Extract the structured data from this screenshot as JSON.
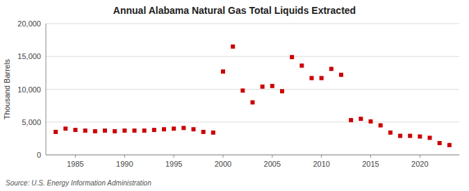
{
  "chart_data": {
    "type": "scatter",
    "title": "Annual Alabama Natural Gas Total Liquids Extracted",
    "y_label": "Thousand Barrels",
    "annotations": [
      "Source: U.S. Energy Information Administration"
    ],
    "x": [
      1983,
      1984,
      1985,
      1986,
      1987,
      1988,
      1989,
      1990,
      1991,
      1992,
      1993,
      1994,
      1995,
      1996,
      1997,
      1998,
      1999,
      2000,
      2001,
      2002,
      2003,
      2004,
      2005,
      2006,
      2007,
      2008,
      2009,
      2010,
      2011,
      2012,
      2013,
      2014,
      2015,
      2016,
      2017,
      2018,
      2019,
      2020,
      2021,
      2022,
      2023
    ],
    "values": [
      3500,
      4000,
      3800,
      3700,
      3600,
      3700,
      3600,
      3700,
      3700,
      3700,
      3800,
      3900,
      4000,
      4100,
      3900,
      3500,
      3400,
      12700,
      16500,
      9800,
      8000,
      10400,
      10500,
      9700,
      14900,
      13600,
      11700,
      11700,
      13100,
      12200,
      5300,
      5500,
      5100,
      4500,
      3400,
      2900,
      2900,
      2800,
      2600,
      1800,
      1500
    ],
    "color": "#cc0000",
    "marker": "square",
    "xlim": [
      1982,
      2024
    ],
    "xticks": [
      1985,
      1990,
      1995,
      2000,
      2005,
      2010,
      2015,
      2020
    ],
    "ylim": [
      0,
      20000
    ],
    "yticks": [
      0,
      {
        "value": 5000,
        "label": "5,000"
      },
      {
        "value": 10000,
        "label": "10,000"
      },
      {
        "value": 15000,
        "label": "15,000"
      },
      {
        "value": 20000,
        "label": "20,000"
      }
    ],
    "grid": true
  }
}
